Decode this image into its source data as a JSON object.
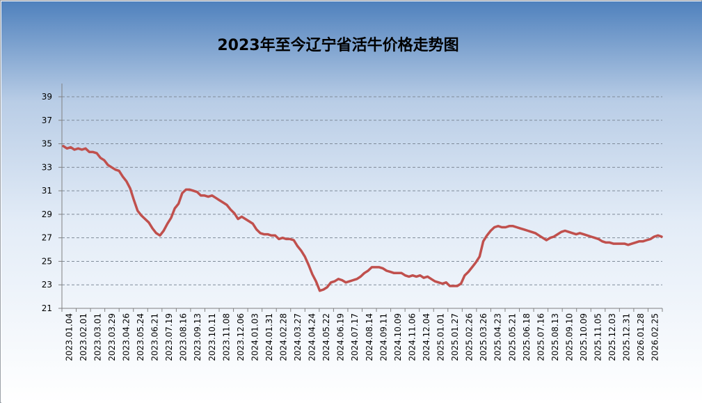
{
  "chart_data": {
    "type": "line",
    "title": "2023年至今辽宁省活牛价格走势图",
    "xlabel": "",
    "ylabel": "",
    "ylim": [
      21,
      40
    ],
    "yticks": [
      "39",
      "37",
      "35",
      "33",
      "31",
      "29",
      "27",
      "25",
      "23",
      "21"
    ],
    "grid": true,
    "legend": "none",
    "line_color": "#c0504d",
    "x_tick_labels": [
      "2023.01.04",
      "2023.02.01",
      "2023.03.01",
      "2023.03.29",
      "2023.04.26",
      "2023.05.24",
      "2023.06.21",
      "2023.07.19",
      "2023.08.16",
      "2023.09.13",
      "2023.10.11",
      "2023.11.08",
      "2023.12.06",
      "2024.01.03",
      "2024.01.31",
      "2024.02.28",
      "2024.03.27",
      "2024.04.24",
      "2024.05.22",
      "2024.06.19",
      "2024.07.17",
      "2024.08.14",
      "2024.09.11",
      "2024.10.09",
      "2024.11.06",
      "2024.12.04",
      "2025.01.01",
      "2025.01.27",
      "2025.02.26",
      "2025.03.26",
      "2025.04.23",
      "2025.05.21",
      "2025.06.18",
      "2025.07.16",
      "2025.08.13",
      "2025.09.10",
      "2025.10.09",
      "2025.11.05",
      "2025.12.03",
      "2025.12.31",
      "2026.01.28",
      "2026.02.25"
    ],
    "series": [
      {
        "values": [
          34.8,
          34.6,
          34.7,
          34.5,
          34.6,
          34.5,
          34.6,
          34.3,
          34.3,
          34.2,
          33.8,
          33.6,
          33.2,
          33.0,
          32.8,
          32.7,
          32.2,
          31.8,
          31.2,
          30.2,
          29.3,
          28.9,
          28.6,
          28.3,
          27.8,
          27.4,
          27.2,
          27.6,
          28.2,
          28.7,
          29.5,
          29.9,
          30.8,
          31.1,
          31.1,
          31.0,
          30.9,
          30.6,
          30.6,
          30.5,
          30.6,
          30.4,
          30.2,
          30.0,
          29.8,
          29.4,
          29.1,
          28.6,
          28.8,
          28.6,
          28.4,
          28.2,
          27.7,
          27.4,
          27.3,
          27.3,
          27.2,
          27.2,
          26.9,
          27.0,
          26.9,
          26.9,
          26.8,
          26.3,
          25.9,
          25.4,
          24.7,
          23.9,
          23.3,
          22.5,
          22.6,
          22.8,
          23.2,
          23.3,
          23.5,
          23.4,
          23.2,
          23.3,
          23.4,
          23.5,
          23.7,
          24.0,
          24.2,
          24.5,
          24.5,
          24.5,
          24.4,
          24.2,
          24.1,
          24.0,
          24.0,
          24.0,
          23.8,
          23.7,
          23.8,
          23.7,
          23.8,
          23.6,
          23.7,
          23.5,
          23.3,
          23.2,
          23.1,
          23.2,
          22.9,
          22.9,
          22.9,
          23.1,
          23.8,
          24.1,
          24.5,
          24.9,
          25.4,
          26.7,
          27.2,
          27.6,
          27.9,
          28.0,
          27.9,
          27.9,
          28.0,
          28.0,
          27.9,
          27.8,
          27.7,
          27.6,
          27.5,
          27.4,
          27.2,
          27.0,
          26.8,
          27.0,
          27.1,
          27.3,
          27.5,
          27.6,
          27.5,
          27.4,
          27.3,
          27.4,
          27.3,
          27.2,
          27.1,
          27.0,
          26.9,
          26.7,
          26.6,
          26.6,
          26.5,
          26.5,
          26.5,
          26.5,
          26.4,
          26.5,
          26.6,
          26.7,
          26.7,
          26.8,
          26.9,
          27.1,
          27.2,
          27.1
        ]
      }
    ]
  }
}
